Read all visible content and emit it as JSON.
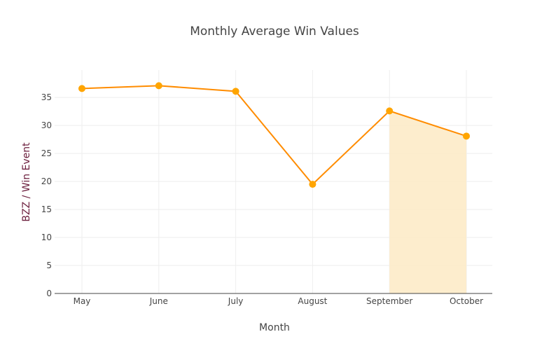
{
  "chart_data": {
    "type": "line",
    "title": "Monthly Average Win Values",
    "xlabel": "Month",
    "ylabel": "BZZ / Win Event",
    "categories": [
      "May",
      "June",
      "July",
      "August",
      "September",
      "October"
    ],
    "series": [
      {
        "values": [
          36.6,
          37.1,
          36.1,
          19.5,
          32.6,
          28.1
        ]
      }
    ],
    "ylim": [
      0,
      39.9
    ],
    "yticks": [
      0,
      5,
      10,
      15,
      20,
      25,
      30,
      35
    ],
    "grid": true,
    "shaded_range": [
      "September",
      "October"
    ],
    "colors": {
      "line": "#ff8c00",
      "marker": "#ffa500",
      "shade": "#fdebc8",
      "ylabel": "#6b1d3c"
    }
  }
}
